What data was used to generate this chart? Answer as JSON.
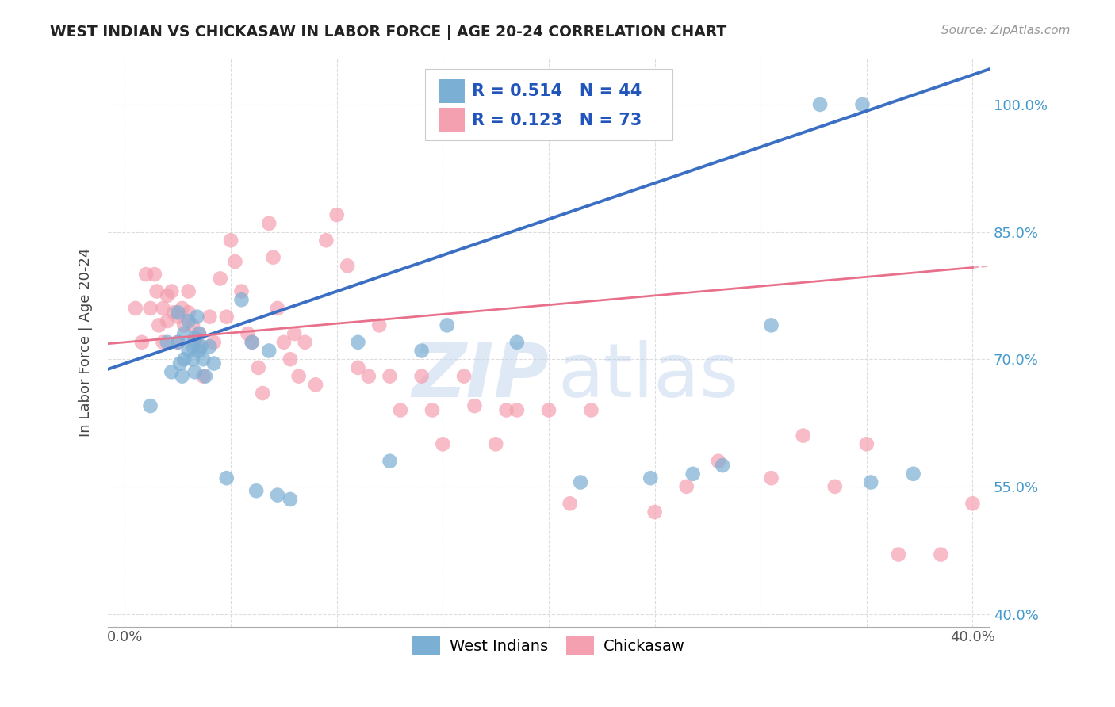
{
  "title": "WEST INDIAN VS CHICKASAW IN LABOR FORCE | AGE 20-24 CORRELATION CHART",
  "source": "Source: ZipAtlas.com",
  "ylabel": "In Labor Force | Age 20-24",
  "xlim": [
    -0.008,
    0.408
  ],
  "ylim": [
    0.385,
    1.055
  ],
  "x_ticks": [
    0.0,
    0.05,
    0.1,
    0.15,
    0.2,
    0.25,
    0.3,
    0.35,
    0.4
  ],
  "y_ticks": [
    0.4,
    0.55,
    0.7,
    0.85,
    1.0
  ],
  "y_tick_labels": [
    "40.0%",
    "55.0%",
    "70.0%",
    "85.0%",
    "100.0%"
  ],
  "blue_R": "0.514",
  "blue_N": "44",
  "pink_R": "0.123",
  "pink_N": "73",
  "blue_color": "#7BAFD4",
  "pink_color": "#F4A0B0",
  "blue_line_color": "#3B6FC4",
  "pink_line_color": "#E8708A",
  "bg_color": "#FFFFFF",
  "grid_color": "#DDDDDD",
  "blue_x": [
    0.012,
    0.02,
    0.022,
    0.025,
    0.025,
    0.026,
    0.027,
    0.028,
    0.028,
    0.03,
    0.03,
    0.032,
    0.032,
    0.033,
    0.033,
    0.034,
    0.035,
    0.035,
    0.036,
    0.037,
    0.038,
    0.04,
    0.042,
    0.048,
    0.055,
    0.06,
    0.062,
    0.068,
    0.072,
    0.078,
    0.11,
    0.125,
    0.14,
    0.152,
    0.185,
    0.215,
    0.248,
    0.268,
    0.282,
    0.305,
    0.328,
    0.348,
    0.352,
    0.372
  ],
  "blue_y": [
    0.645,
    0.72,
    0.685,
    0.755,
    0.72,
    0.695,
    0.68,
    0.73,
    0.7,
    0.745,
    0.71,
    0.715,
    0.7,
    0.725,
    0.685,
    0.75,
    0.73,
    0.71,
    0.715,
    0.7,
    0.68,
    0.715,
    0.695,
    0.56,
    0.77,
    0.72,
    0.545,
    0.71,
    0.54,
    0.535,
    0.72,
    0.58,
    0.71,
    0.74,
    0.72,
    0.555,
    0.56,
    0.565,
    0.575,
    0.74,
    1.0,
    1.0,
    0.555,
    0.565
  ],
  "pink_x": [
    0.005,
    0.008,
    0.01,
    0.012,
    0.014,
    0.015,
    0.016,
    0.018,
    0.018,
    0.02,
    0.02,
    0.022,
    0.023,
    0.025,
    0.025,
    0.027,
    0.028,
    0.03,
    0.03,
    0.032,
    0.033,
    0.035,
    0.035,
    0.037,
    0.04,
    0.042,
    0.045,
    0.048,
    0.05,
    0.052,
    0.055,
    0.058,
    0.06,
    0.063,
    0.065,
    0.068,
    0.07,
    0.072,
    0.075,
    0.078,
    0.08,
    0.082,
    0.085,
    0.09,
    0.095,
    0.1,
    0.105,
    0.11,
    0.115,
    0.12,
    0.125,
    0.13,
    0.14,
    0.145,
    0.15,
    0.16,
    0.165,
    0.175,
    0.18,
    0.185,
    0.2,
    0.21,
    0.22,
    0.25,
    0.265,
    0.28,
    0.305,
    0.32,
    0.335,
    0.35,
    0.365,
    0.385,
    0.4
  ],
  "pink_y": [
    0.76,
    0.72,
    0.8,
    0.76,
    0.8,
    0.78,
    0.74,
    0.76,
    0.72,
    0.775,
    0.745,
    0.78,
    0.755,
    0.75,
    0.72,
    0.76,
    0.74,
    0.78,
    0.755,
    0.74,
    0.72,
    0.73,
    0.715,
    0.68,
    0.75,
    0.72,
    0.795,
    0.75,
    0.84,
    0.815,
    0.78,
    0.73,
    0.72,
    0.69,
    0.66,
    0.86,
    0.82,
    0.76,
    0.72,
    0.7,
    0.73,
    0.68,
    0.72,
    0.67,
    0.84,
    0.87,
    0.81,
    0.69,
    0.68,
    0.74,
    0.68,
    0.64,
    0.68,
    0.64,
    0.6,
    0.68,
    0.645,
    0.6,
    0.64,
    0.64,
    0.64,
    0.53,
    0.64,
    0.52,
    0.55,
    0.58,
    0.56,
    0.61,
    0.55,
    0.6,
    0.47,
    0.47,
    0.53
  ]
}
